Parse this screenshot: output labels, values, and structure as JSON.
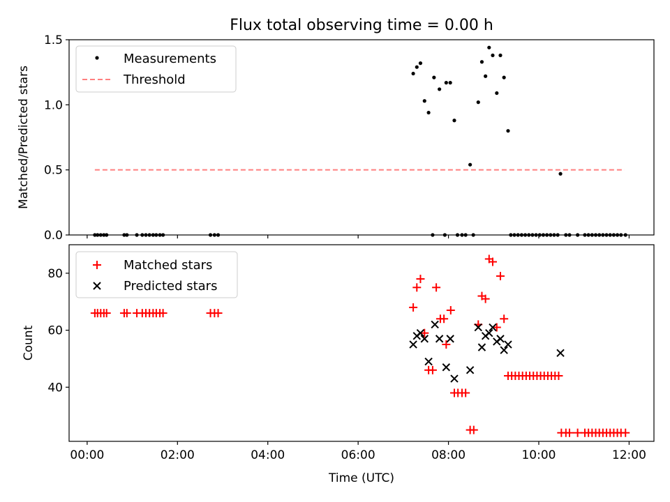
{
  "title": "Flux total observing time = 0.00 h",
  "chart_data": [
    {
      "type": "scatter",
      "panel": "top",
      "title": "Flux total observing time = 0.00 h",
      "xlabel": "",
      "ylabel": "Matched/Predicted stars",
      "xlim": [
        -0.4,
        12.55
      ],
      "ylim": [
        0,
        1.5
      ],
      "yticks": [
        0.0,
        0.5,
        1.0,
        1.5
      ],
      "yticklabels": [
        "0.0",
        "0.5",
        "1.0",
        "1.5"
      ],
      "legend": {
        "position": "top-left",
        "entries": [
          {
            "label": "Measurements",
            "marker": "dot",
            "color": "#000000"
          },
          {
            "label": "Threshold",
            "marker": "dashed-line",
            "color": "#ff7f7f"
          }
        ]
      },
      "threshold": {
        "name": "Threshold",
        "value": 0.5,
        "x_start": 0.17,
        "x_end": 11.9,
        "color": "#ff7f7f"
      },
      "series": [
        {
          "name": "Measurements",
          "color": "#000000",
          "points": [
            [
              0.17,
              0
            ],
            [
              0.23,
              0
            ],
            [
              0.3,
              0
            ],
            [
              0.37,
              0
            ],
            [
              0.43,
              0
            ],
            [
              0.82,
              0
            ],
            [
              0.88,
              0
            ],
            [
              1.1,
              0
            ],
            [
              1.22,
              0
            ],
            [
              1.3,
              0
            ],
            [
              1.38,
              0
            ],
            [
              1.46,
              0
            ],
            [
              1.53,
              0
            ],
            [
              1.61,
              0
            ],
            [
              1.68,
              0
            ],
            [
              2.73,
              0
            ],
            [
              2.82,
              0
            ],
            [
              2.9,
              0
            ],
            [
              7.22,
              1.24
            ],
            [
              7.3,
              1.29
            ],
            [
              7.38,
              1.32
            ],
            [
              7.47,
              1.03
            ],
            [
              7.56,
              0.94
            ],
            [
              7.68,
              1.21
            ],
            [
              7.8,
              1.12
            ],
            [
              7.95,
              1.17
            ],
            [
              8.04,
              1.17
            ],
            [
              8.13,
              0.88
            ],
            [
              8.48,
              0.54
            ],
            [
              8.66,
              1.02
            ],
            [
              8.74,
              1.33
            ],
            [
              8.82,
              1.22
            ],
            [
              8.9,
              1.44
            ],
            [
              8.98,
              1.38
            ],
            [
              9.07,
              1.09
            ],
            [
              9.15,
              1.38
            ],
            [
              9.23,
              1.21
            ],
            [
              9.32,
              0.8
            ],
            [
              10.48,
              0.47
            ],
            [
              7.65,
              0
            ],
            [
              7.92,
              0
            ],
            [
              8.2,
              0
            ],
            [
              8.3,
              0
            ],
            [
              8.38,
              0
            ],
            [
              8.55,
              0
            ],
            [
              9.38,
              0
            ],
            [
              9.46,
              0
            ],
            [
              9.54,
              0
            ],
            [
              9.62,
              0
            ],
            [
              9.7,
              0
            ],
            [
              9.78,
              0
            ],
            [
              9.86,
              0
            ],
            [
              9.94,
              0
            ],
            [
              10.02,
              0
            ],
            [
              10.1,
              0
            ],
            [
              10.18,
              0
            ],
            [
              10.26,
              0
            ],
            [
              10.34,
              0
            ],
            [
              10.42,
              0
            ],
            [
              10.6,
              0
            ],
            [
              10.68,
              0
            ],
            [
              10.86,
              0
            ],
            [
              11.02,
              0
            ],
            [
              11.1,
              0
            ],
            [
              11.18,
              0
            ],
            [
              11.26,
              0
            ],
            [
              11.34,
              0
            ],
            [
              11.42,
              0
            ],
            [
              11.5,
              0
            ],
            [
              11.58,
              0
            ],
            [
              11.66,
              0
            ],
            [
              11.74,
              0
            ],
            [
              11.82,
              0
            ],
            [
              11.92,
              0
            ]
          ]
        }
      ]
    },
    {
      "type": "scatter",
      "panel": "bottom",
      "xlabel": "Time (UTC)",
      "ylabel": "Count",
      "xlim": [
        -0.4,
        12.55
      ],
      "ylim": [
        21,
        90
      ],
      "yticks": [
        40,
        60,
        80
      ],
      "yticklabels": [
        "40",
        "60",
        "80"
      ],
      "xticks": [
        0,
        2,
        4,
        6,
        8,
        10,
        12
      ],
      "xticklabels": [
        "00:00",
        "02:00",
        "04:00",
        "06:00",
        "08:00",
        "10:00",
        "12:00"
      ],
      "legend": {
        "position": "top-left",
        "entries": [
          {
            "label": "Matched stars",
            "marker": "plus",
            "color": "#ff0000"
          },
          {
            "label": "Predicted stars",
            "marker": "x",
            "color": "#000000"
          }
        ]
      },
      "series": [
        {
          "name": "Matched stars",
          "color": "#ff0000",
          "marker": "plus",
          "points": [
            [
              0.17,
              66
            ],
            [
              0.23,
              66
            ],
            [
              0.3,
              66
            ],
            [
              0.37,
              66
            ],
            [
              0.43,
              66
            ],
            [
              0.82,
              66
            ],
            [
              0.88,
              66
            ],
            [
              1.1,
              66
            ],
            [
              1.22,
              66
            ],
            [
              1.3,
              66
            ],
            [
              1.38,
              66
            ],
            [
              1.46,
              66
            ],
            [
              1.53,
              66
            ],
            [
              1.61,
              66
            ],
            [
              1.68,
              66
            ],
            [
              2.73,
              66
            ],
            [
              2.82,
              66
            ],
            [
              2.9,
              66
            ],
            [
              7.22,
              68
            ],
            [
              7.3,
              75
            ],
            [
              7.38,
              78
            ],
            [
              7.47,
              59
            ],
            [
              7.56,
              46
            ],
            [
              7.65,
              46
            ],
            [
              7.73,
              75
            ],
            [
              7.82,
              64
            ],
            [
              7.9,
              64
            ],
            [
              7.95,
              55
            ],
            [
              8.05,
              67
            ],
            [
              8.13,
              38
            ],
            [
              8.21,
              38
            ],
            [
              8.3,
              38
            ],
            [
              8.38,
              38
            ],
            [
              8.48,
              25
            ],
            [
              8.56,
              25
            ],
            [
              8.66,
              62
            ],
            [
              8.74,
              72
            ],
            [
              8.82,
              71
            ],
            [
              8.9,
              85
            ],
            [
              8.98,
              84
            ],
            [
              9.07,
              61
            ],
            [
              9.15,
              79
            ],
            [
              9.23,
              64
            ],
            [
              9.32,
              44
            ],
            [
              9.4,
              44
            ],
            [
              9.48,
              44
            ],
            [
              9.56,
              44
            ],
            [
              9.64,
              44
            ],
            [
              9.72,
              44
            ],
            [
              9.8,
              44
            ],
            [
              9.88,
              44
            ],
            [
              9.96,
              44
            ],
            [
              10.04,
              44
            ],
            [
              10.12,
              44
            ],
            [
              10.2,
              44
            ],
            [
              10.28,
              44
            ],
            [
              10.36,
              44
            ],
            [
              10.44,
              44
            ],
            [
              10.5,
              24
            ],
            [
              10.6,
              24
            ],
            [
              10.68,
              24
            ],
            [
              10.86,
              24
            ],
            [
              11.02,
              24
            ],
            [
              11.1,
              24
            ],
            [
              11.18,
              24
            ],
            [
              11.26,
              24
            ],
            [
              11.34,
              24
            ],
            [
              11.42,
              24
            ],
            [
              11.5,
              24
            ],
            [
              11.58,
              24
            ],
            [
              11.66,
              24
            ],
            [
              11.74,
              24
            ],
            [
              11.82,
              24
            ],
            [
              11.92,
              24
            ]
          ]
        },
        {
          "name": "Predicted stars",
          "color": "#000000",
          "marker": "x",
          "points": [
            [
              7.22,
              55
            ],
            [
              7.3,
              58
            ],
            [
              7.38,
              59
            ],
            [
              7.47,
              57
            ],
            [
              7.56,
              49
            ],
            [
              7.7,
              62
            ],
            [
              7.8,
              57
            ],
            [
              7.95,
              47
            ],
            [
              8.04,
              57
            ],
            [
              8.13,
              43
            ],
            [
              8.48,
              46
            ],
            [
              8.66,
              61
            ],
            [
              8.74,
              54
            ],
            [
              8.82,
              58
            ],
            [
              8.9,
              59
            ],
            [
              8.98,
              61
            ],
            [
              9.07,
              56
            ],
            [
              9.15,
              57
            ],
            [
              9.23,
              53
            ],
            [
              9.32,
              55
            ],
            [
              10.48,
              52
            ]
          ]
        }
      ]
    }
  ]
}
